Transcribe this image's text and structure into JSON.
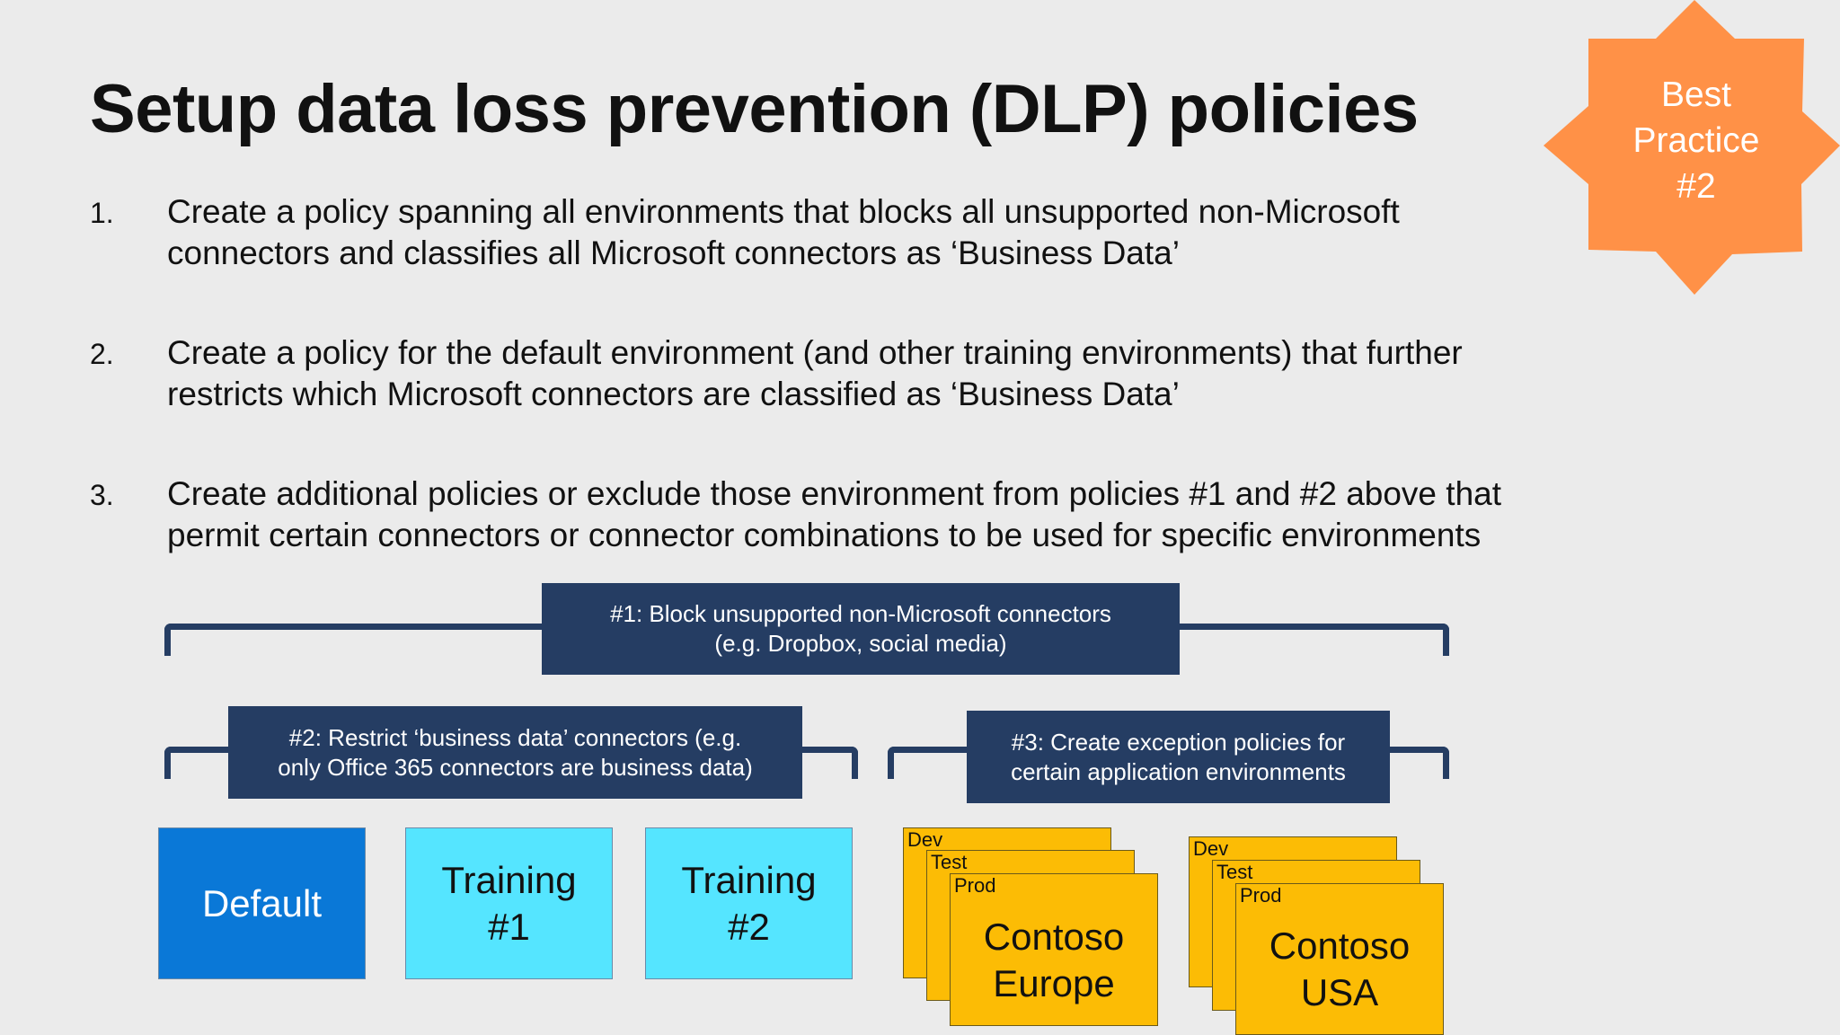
{
  "slide": {
    "title": "Setup data loss prevention (DLP) policies",
    "badge": {
      "text": "Best\nPractice\n#2",
      "color": "#ff9147"
    },
    "steps": [
      {
        "num": "1.",
        "line1": "Create a policy spanning all environments that blocks all unsupported non-Microsoft",
        "line2": "connectors and classifies all Microsoft connectors as ‘Business Data’"
      },
      {
        "num": "2.",
        "line1": "Create a policy for the default environment (and other training environments) that further",
        "line2": "restricts which Microsoft connectors are classified as ‘Business Data’"
      },
      {
        "num": "3.",
        "line1": "Create additional policies or exclude those environment from policies #1 and #2 above that",
        "line2": "permit certain connectors or connector combinations to be used for specific environments"
      }
    ]
  },
  "diagram": {
    "policy1": "#1: Block unsupported non-Microsoft connectors\n(e.g. Dropbox, social media)",
    "policy2": "#2: Restrict ‘business data’ connectors (e.g.\nonly Office 365 connectors are business data)",
    "policy3": "#3: Create exception policies for\ncertain application environments",
    "environments": [
      {
        "label": "Default",
        "color": "#0a78d7"
      },
      {
        "label": "Training\n#1",
        "color": "#55e5ff"
      },
      {
        "label": "Training\n#2",
        "color": "#55e5ff"
      }
    ],
    "stacks": [
      {
        "layers": [
          "Dev",
          "Test",
          "Prod"
        ],
        "name": "Contoso\nEurope",
        "color": "#fcbc05"
      },
      {
        "layers": [
          "Dev",
          "Test",
          "Prod"
        ],
        "name": "Contoso\nUSA",
        "color": "#fcbc05"
      }
    ],
    "colors": {
      "policy_box": "#253d63",
      "background": "#ebebeb"
    }
  }
}
